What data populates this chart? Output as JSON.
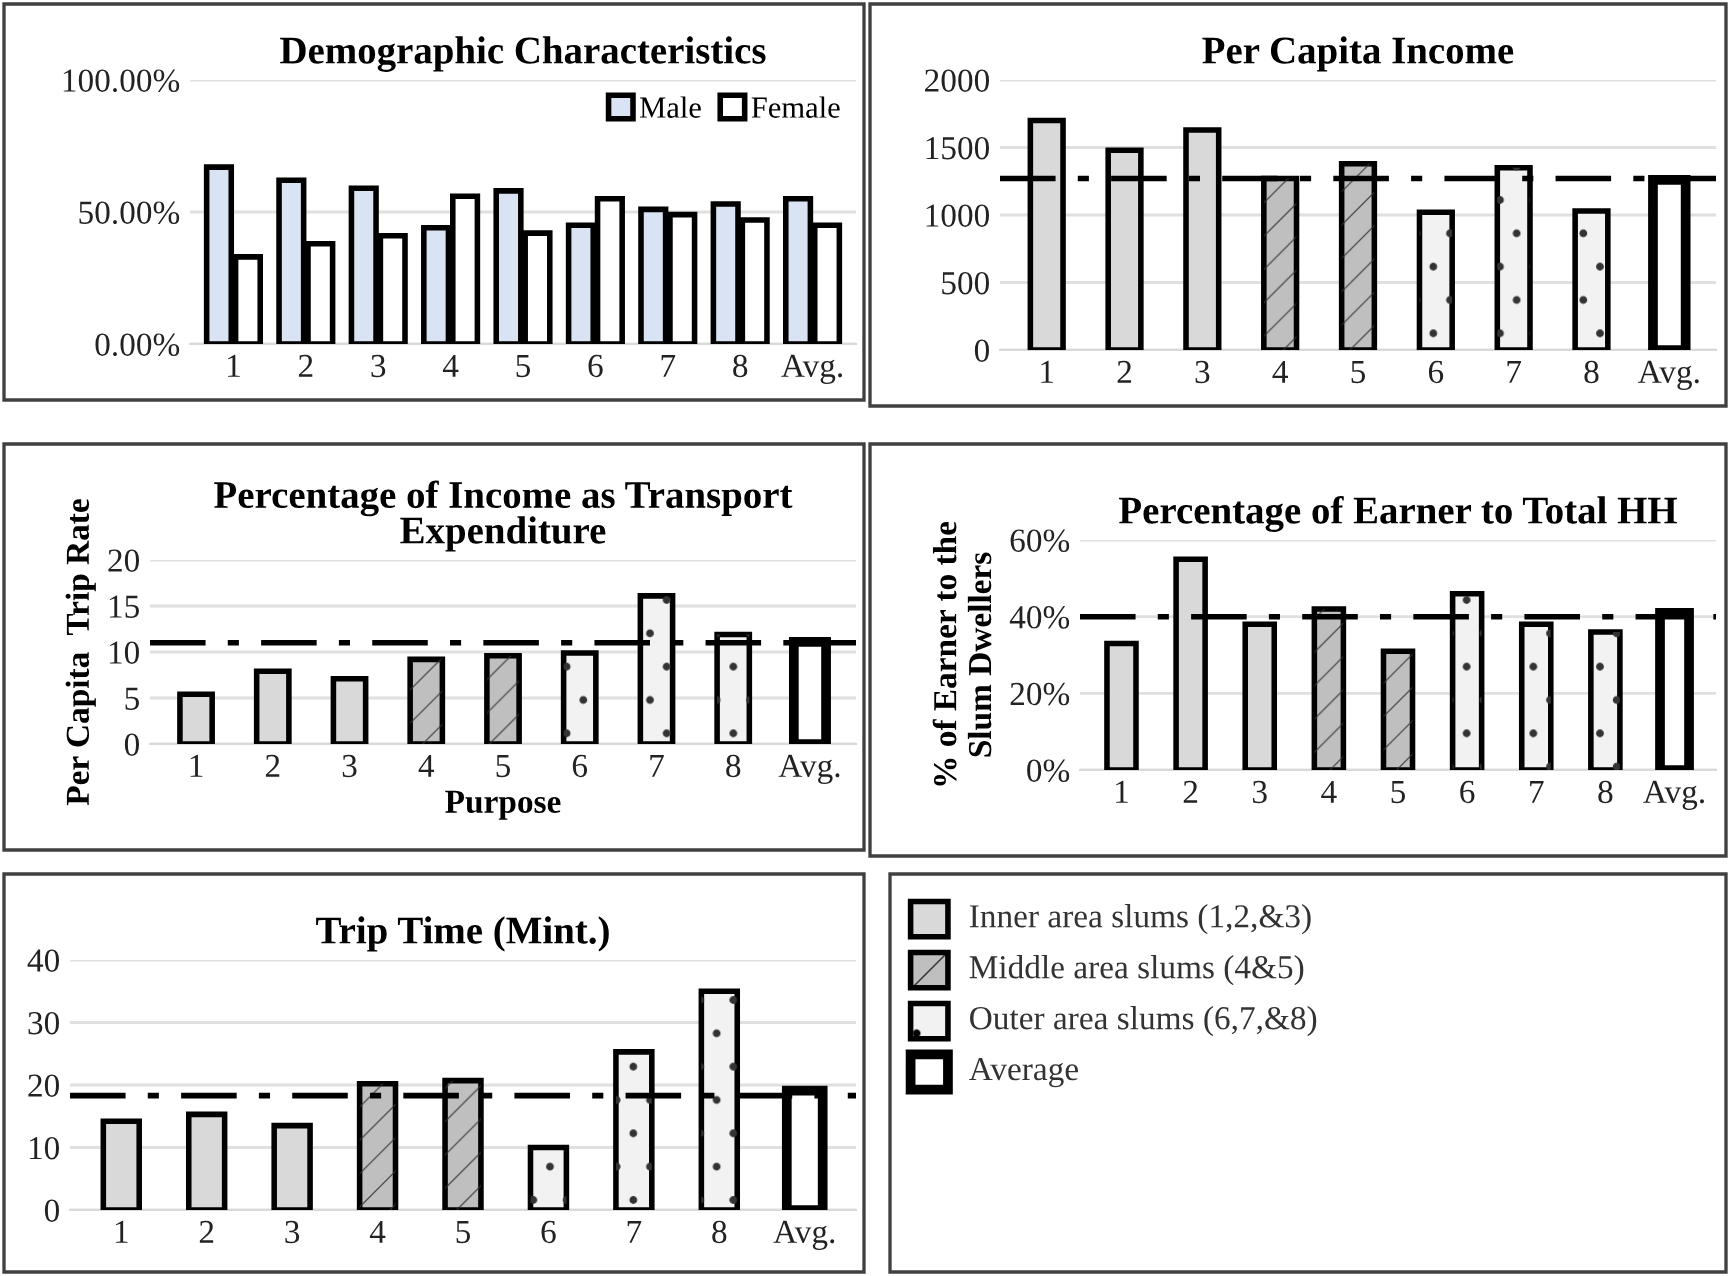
{
  "chart_data": [
    {
      "type": "bar",
      "title": "Demographic Characteristics",
      "categories": [
        "1",
        "2",
        "3",
        "4",
        "5",
        "6",
        "7",
        "8",
        "Avg."
      ],
      "series": [
        {
          "name": "Male",
          "color": "#dae3f3",
          "values": [
            67,
            62,
            59,
            44,
            58,
            45,
            51,
            53,
            55
          ]
        },
        {
          "name": "Female",
          "color": "#ffffff",
          "values": [
            33,
            38,
            41,
            56,
            42,
            55,
            49,
            47,
            45
          ]
        }
      ],
      "ylim": [
        0,
        100
      ],
      "yticks": [
        {
          "value": 0,
          "label": "0.00%"
        },
        {
          "value": 50,
          "label": "50.00%"
        },
        {
          "value": 100,
          "label": "100.00%"
        }
      ],
      "grid": "y",
      "legend": "top right"
    },
    {
      "type": "bar",
      "title": "Per Capita Income",
      "categories": [
        "1",
        "2",
        "3",
        "4",
        "5",
        "6",
        "7",
        "8",
        "Avg."
      ],
      "values": [
        1700,
        1480,
        1630,
        1270,
        1380,
        1020,
        1350,
        1030,
        1260
      ],
      "colors": [
        "#d9d9d9",
        "#d9d9d9",
        "#d9d9d9",
        "#bfbfbf",
        "#bfbfbf",
        "#f2f2f2",
        "#f2f2f2",
        "#f2f2f2",
        "#ffffff"
      ],
      "ylim": [
        0,
        2000
      ],
      "yticks": [
        0,
        500,
        1000,
        1500,
        2000
      ],
      "grid": "y",
      "ref_lines": [
        {
          "axis": "y",
          "value": 1270,
          "line_style": "dashed",
          "color": "#000000"
        }
      ]
    },
    {
      "type": "bar",
      "title": "Percentage of Income as Transport\nExpenditure",
      "xlabel": "Purpose",
      "ylabel": "Per Capita  Trip Rate",
      "categories": [
        "1",
        "2",
        "3",
        "4",
        "5",
        "6",
        "7",
        "8",
        "Avg."
      ],
      "values": [
        5.4,
        7.9,
        7.1,
        9.2,
        9.6,
        9.9,
        16.1,
        11.9,
        11.1
      ],
      "colors": [
        "#d9d9d9",
        "#d9d9d9",
        "#d9d9d9",
        "#bfbfbf",
        "#bfbfbf",
        "#f2f2f2",
        "#f2f2f2",
        "#f2f2f2",
        "#ffffff"
      ],
      "ylim": [
        0,
        20
      ],
      "yticks": [
        0,
        5,
        10,
        15,
        20
      ],
      "grid": "y",
      "ref_lines": [
        {
          "axis": "y",
          "value": 11,
          "line_style": "dashed",
          "color": "#000000"
        }
      ]
    },
    {
      "type": "bar",
      "title": "Percentage of Earner to Total HH",
      "ylabel": "% of Earner to the\nSlum Dwellers",
      "categories": [
        "1",
        "2",
        "3",
        "4",
        "5",
        "6",
        "7",
        "8",
        "Avg."
      ],
      "values": [
        33,
        55,
        38,
        42,
        31,
        46,
        38,
        36,
        41
      ],
      "colors": [
        "#d9d9d9",
        "#d9d9d9",
        "#d9d9d9",
        "#bfbfbf",
        "#bfbfbf",
        "#f2f2f2",
        "#f2f2f2",
        "#f2f2f2",
        "#ffffff"
      ],
      "ylim": [
        0,
        60
      ],
      "yticks": [
        {
          "value": 0,
          "label": "0%"
        },
        {
          "value": 20,
          "label": "20%"
        },
        {
          "value": 40,
          "label": "40%"
        },
        {
          "value": 60,
          "label": "60%"
        }
      ],
      "grid": "y",
      "ref_lines": [
        {
          "axis": "y",
          "value": 40,
          "line_style": "dashed",
          "color": "#000000"
        }
      ]
    },
    {
      "type": "bar",
      "title": "Trip Time (Mint.)",
      "categories": [
        "1",
        "2",
        "3",
        "4",
        "5",
        "6",
        "7",
        "8",
        "Avg."
      ],
      "values": [
        14.2,
        15.3,
        13.5,
        20.2,
        20.7,
        10,
        25.3,
        35,
        19.1
      ],
      "colors": [
        "#d9d9d9",
        "#d9d9d9",
        "#d9d9d9",
        "#bfbfbf",
        "#bfbfbf",
        "#f2f2f2",
        "#f2f2f2",
        "#f2f2f2",
        "#ffffff"
      ],
      "ylim": [
        0,
        40
      ],
      "yticks": [
        0,
        10,
        20,
        30,
        40
      ],
      "grid": "y",
      "ref_lines": [
        {
          "axis": "y",
          "value": 18.3,
          "line_style": "dashed",
          "color": "#000000"
        }
      ]
    },
    {
      "type": "other",
      "annotations": [
        "Inner area slums (1,2,&3)",
        "Middle area slums (4&5)",
        "Outer area slums (6,7,&8)",
        "Average"
      ],
      "colors": [
        "#d9d9d9",
        "#bfbfbf",
        "#f2f2f2",
        "#ffffff"
      ]
    }
  ]
}
